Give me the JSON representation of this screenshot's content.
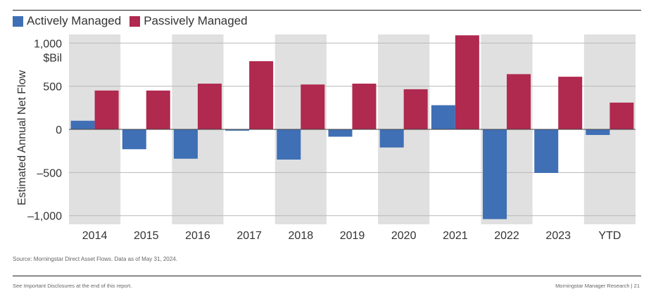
{
  "chart_data": {
    "type": "bar",
    "categories": [
      "2014",
      "2015",
      "2016",
      "2017",
      "2018",
      "2019",
      "2020",
      "2021",
      "2022",
      "2023",
      "YTD"
    ],
    "series": [
      {
        "name": "Actively Managed",
        "color": "#3f6fb5",
        "values": [
          100,
          -230,
          -340,
          -15,
          -350,
          -85,
          -210,
          280,
          -1040,
          -505,
          -65
        ]
      },
      {
        "name": "Passively Managed",
        "color": "#b0294f",
        "values": [
          450,
          450,
          530,
          790,
          520,
          530,
          465,
          1090,
          640,
          610,
          310
        ]
      }
    ],
    "ylabel": "Estimated Annual Net Flow",
    "yunit": "$Bil",
    "ylim": [
      -1100,
      1100
    ],
    "yticks": [
      {
        "value": 1000,
        "label": "1,000"
      },
      {
        "value": 500,
        "label": "500"
      },
      {
        "value": 0,
        "label": "0"
      },
      {
        "value": -500,
        "label": "–500"
      },
      {
        "value": -1000,
        "label": "–1,000"
      }
    ],
    "band_color": "#e0e0e0",
    "legend_position": "top-left"
  },
  "source": "Source: Morningstar Direct Asset Flows. Data as of May 31, 2024.",
  "footer": {
    "left": "See Important Disclosures at the end of this report.",
    "right": "Morningstar Manager Research  |  21"
  }
}
